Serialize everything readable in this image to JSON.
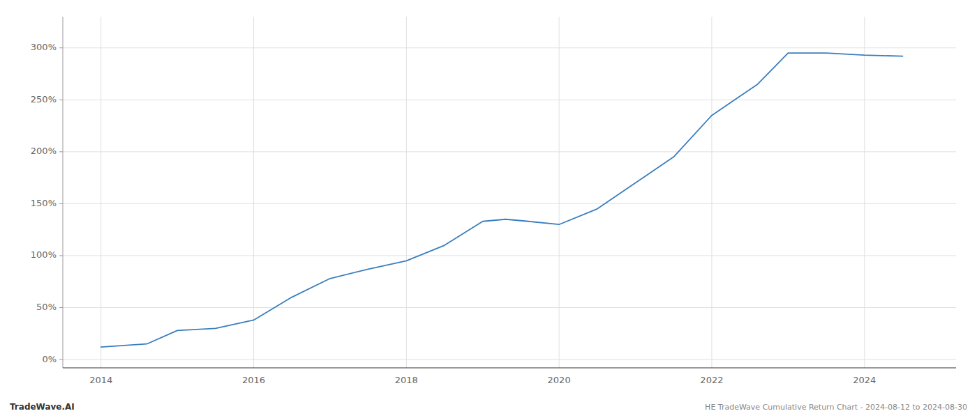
{
  "chart_data": {
    "type": "line",
    "title": "HE TradeWave Cumulative Return Chart - 2024-08-12 to 2024-08-30",
    "annotations": [
      "TradeWave.AI"
    ],
    "x": [
      2014,
      2014.6,
      2015,
      2015.5,
      2016,
      2016.5,
      2017,
      2017.5,
      2018,
      2018.5,
      2019,
      2019.3,
      2019.6,
      2020,
      2020.5,
      2021,
      2021.5,
      2022,
      2022.3,
      2022.6,
      2023,
      2023.5,
      2024,
      2024.5
    ],
    "values": [
      12,
      15,
      28,
      30,
      38,
      60,
      78,
      87,
      95,
      110,
      133,
      135,
      133,
      130,
      145,
      170,
      195,
      235,
      250,
      265,
      295,
      295,
      293,
      292
    ],
    "color": "#3a7ebf",
    "xlim": [
      2013.5,
      2025.2
    ],
    "ylim": [
      -8,
      330
    ],
    "xticks": [
      2014,
      2016,
      2018,
      2020,
      2022,
      2024
    ],
    "yticks": [
      {
        "value": 0,
        "label": "0%"
      },
      {
        "value": 50,
        "label": "50%"
      },
      {
        "value": 100,
        "label": "100%"
      },
      {
        "value": 150,
        "label": "150%"
      },
      {
        "value": 200,
        "label": "200%"
      },
      {
        "value": 250,
        "label": "250%"
      },
      {
        "value": 300,
        "label": "300%"
      }
    ],
    "grid": true
  }
}
